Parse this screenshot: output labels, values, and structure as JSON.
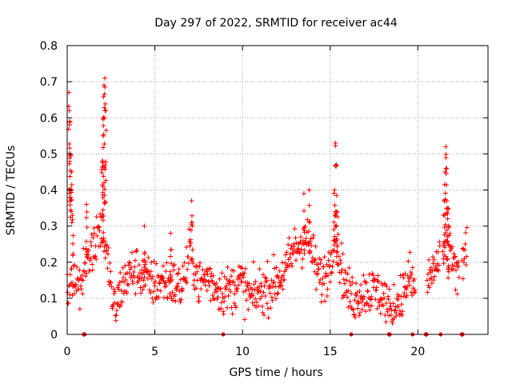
{
  "chart_data": {
    "type": "scatter",
    "title": "Day 297 of 2022, SRMTID for receiver ac44",
    "xlabel": "GPS time / hours",
    "ylabel": "SRMTID / TECUs",
    "xlim": [
      0,
      24
    ],
    "ylim": [
      0,
      0.8
    ],
    "xticks": [
      "0",
      "5",
      "10",
      "15",
      "20"
    ],
    "yticks": [
      "0",
      "0.1",
      "0.2",
      "0.3",
      "0.4",
      "0.5",
      "0.6",
      "0.7",
      "0.8"
    ],
    "grid": true,
    "marker": "+",
    "color": "#ff0000",
    "envelope": {
      "x": [
        0,
        0.3,
        0.6,
        0.8,
        1.0,
        1.3,
        1.6,
        1.9,
        2.05,
        2.2,
        2.4,
        2.6,
        2.8,
        3.0,
        3.3,
        3.6,
        4.0,
        4.3,
        4.6,
        5.0,
        5.5,
        6.0,
        6.5,
        6.8,
        7.0,
        7.2,
        7.5,
        8.0,
        8.5,
        9.0,
        9.5,
        9.8,
        10.0,
        10.2,
        10.5,
        11.0,
        11.5,
        12.0,
        12.5,
        12.8,
        13.0,
        13.3,
        13.6,
        13.9,
        14.2,
        14.5,
        14.8,
        15.0,
        15.2,
        15.35,
        15.5,
        15.8,
        16.0,
        16.3,
        16.6,
        17.0,
        17.5,
        18.0,
        18.3,
        18.5,
        18.8,
        19.0,
        19.3,
        19.6,
        19.8,
        20.6,
        20.8,
        21.0,
        21.3,
        21.6,
        21.8,
        22.0,
        22.2,
        22.4,
        22.6,
        22.8
      ],
      "y": [
        0.15,
        0.14,
        0.16,
        0.13,
        0.2,
        0.22,
        0.25,
        0.3,
        0.28,
        0.22,
        0.18,
        0.08,
        0.07,
        0.12,
        0.15,
        0.17,
        0.18,
        0.16,
        0.15,
        0.14,
        0.15,
        0.14,
        0.13,
        0.18,
        0.24,
        0.2,
        0.14,
        0.16,
        0.13,
        0.12,
        0.13,
        0.15,
        0.14,
        0.12,
        0.1,
        0.12,
        0.13,
        0.15,
        0.18,
        0.22,
        0.24,
        0.25,
        0.27,
        0.24,
        0.18,
        0.15,
        0.17,
        0.2,
        0.28,
        0.3,
        0.22,
        0.15,
        0.12,
        0.1,
        0.11,
        0.12,
        0.12,
        0.11,
        0.07,
        0.06,
        0.09,
        0.1,
        0.13,
        0.16,
        0.12,
        0.15,
        0.17,
        0.19,
        0.2,
        0.23,
        0.25,
        0.21,
        0.17,
        0.15,
        0.2,
        0.27
      ],
      "noise": 0.065,
      "gaps": [
        [
          19.85,
          20.5
        ],
        [
          21.25,
          21.4
        ],
        [
          22.35,
          22.5
        ]
      ]
    },
    "spikes": {
      "x": [
        0.1,
        0.12,
        0.15,
        0.2,
        0.25,
        0.3,
        2.0,
        2.05,
        2.1,
        2.15,
        2.2,
        2.05,
        2.1,
        15.25,
        15.3,
        15.35,
        15.4,
        21.5,
        21.55,
        21.6,
        21.65,
        21.7,
        21.75,
        7.1,
        13.5,
        13.8,
        4.4,
        1.1,
        5.9
      ],
      "y": [
        0.67,
        0.62,
        0.59,
        0.5,
        0.45,
        0.33,
        0.48,
        0.6,
        0.69,
        0.71,
        0.62,
        0.55,
        0.42,
        0.4,
        0.53,
        0.47,
        0.34,
        0.37,
        0.45,
        0.52,
        0.46,
        0.35,
        0.3,
        0.37,
        0.39,
        0.4,
        0.3,
        0.36,
        0.28
      ]
    },
    "zero_points_x": [
      0.95,
      1.0,
      8.9,
      16.2,
      18.35,
      18.4,
      19.7,
      20.45,
      20.5,
      21.3,
      22.5,
      22.55
    ]
  }
}
